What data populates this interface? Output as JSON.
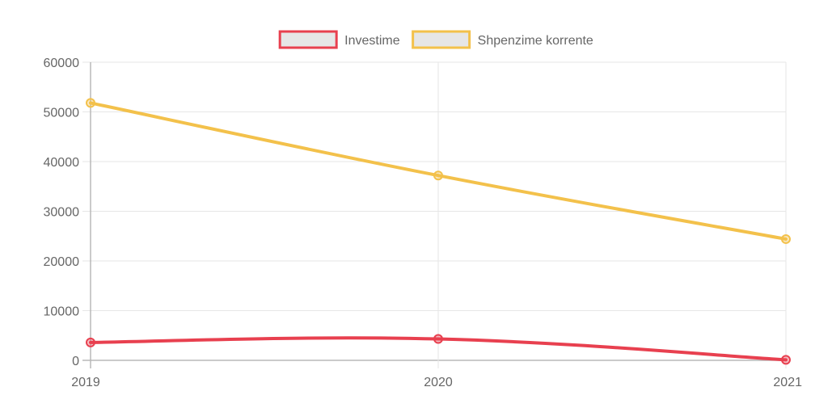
{
  "chart_data": {
    "type": "line",
    "x": [
      "2019",
      "2020",
      "2021"
    ],
    "series": [
      {
        "name": "Investime",
        "values": [
          3600,
          4300,
          100
        ],
        "color": "#e8404f"
      },
      {
        "name": "Shpenzime korrente",
        "values": [
          51800,
          37200,
          24400
        ],
        "color": "#f3c14b"
      }
    ],
    "ylim": [
      0,
      60000
    ],
    "yticks": [
      0,
      10000,
      20000,
      30000,
      40000,
      50000,
      60000
    ],
    "grid": true,
    "legend_position": "top-center"
  }
}
